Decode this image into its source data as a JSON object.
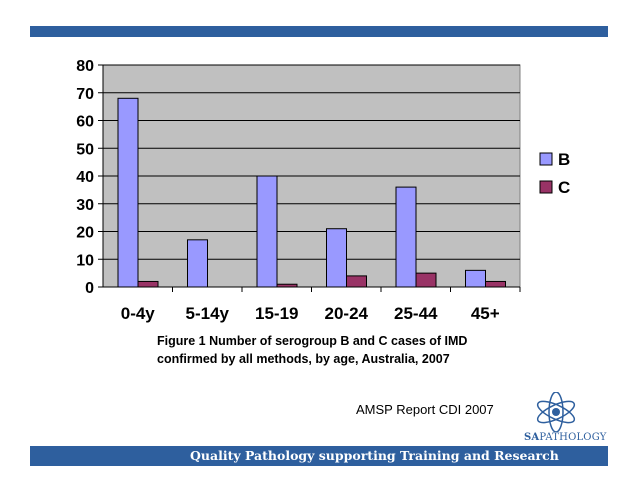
{
  "slide": {
    "caption_line1": "Figure 1 Number of serogroup B and C cases of IMD",
    "caption_line2": "confirmed by all methods, by age, Australia, 2007",
    "source": "AMSP Report CDI 2007",
    "logo_sa": "SA",
    "logo_pathology": "PATHOLOGY",
    "footer": "Quality Pathology supporting Training and Research"
  },
  "colors": {
    "band": "#2e5f9e",
    "plot_bg": "#c0c0c0",
    "series_b": "#9999ff",
    "series_c": "#993366"
  },
  "chart_data": {
    "type": "bar",
    "categories": [
      "0-4y",
      "5-14y",
      "15-19",
      "20-24",
      "25-44",
      "45+"
    ],
    "series": [
      {
        "name": "B",
        "values": [
          68,
          17,
          40,
          21,
          36,
          6
        ]
      },
      {
        "name": "C",
        "values": [
          2,
          0,
          1,
          4,
          5,
          2
        ]
      }
    ],
    "ylim": [
      0,
      80
    ],
    "yticks": [
      0,
      10,
      20,
      30,
      40,
      50,
      60,
      70,
      80
    ],
    "grid": true,
    "legend": "right",
    "title": "",
    "xlabel": "",
    "ylabel": ""
  }
}
